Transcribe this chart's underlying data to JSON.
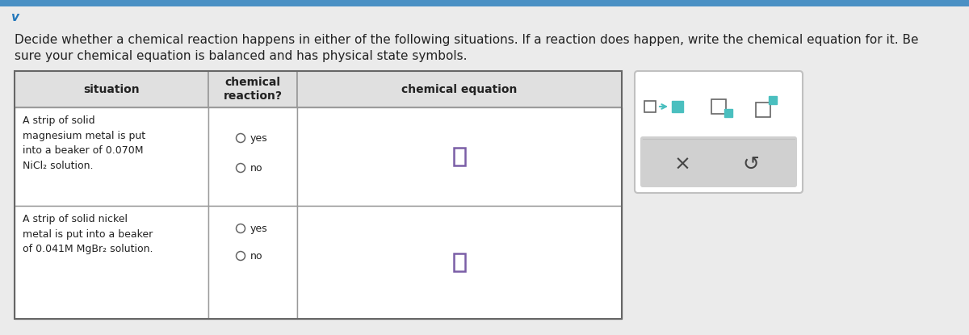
{
  "page_bg": "#ebebeb",
  "cell_bg_header": "#e0e0e0",
  "cell_bg_body": "#ffffff",
  "text_color": "#222222",
  "radio_color": "#666666",
  "checkbox_color_purple": "#7b5ea7",
  "teal_color": "#4abfbf",
  "table_border_color": "#999999",
  "toolbar_border_color": "#cccccc",
  "toolbar_gray_bg": "#d0d0d0",
  "font_size_instruction": 11.0,
  "font_size_header": 9.5,
  "font_size_body": 9.0,
  "instruction_line1": "Decide whether a chemical reaction happens in either of the following situations. If a reaction does happen, write the chemical equation for it. Be",
  "instruction_line2": "sure your chemical equation is balanced and has physical state symbols.",
  "sit1_line1": "A strip of solid",
  "sit1_line2": "magnesium metal is put",
  "sit1_line3": "into a beaker of 0.070Μ",
  "sit1_line4": "NiCl₂ solution.",
  "sit2_line1": "A strip of solid nickel",
  "sit2_line2": "metal is put into a beaker",
  "sit2_line3": "of 0.041Μ MgBr₂ solution."
}
